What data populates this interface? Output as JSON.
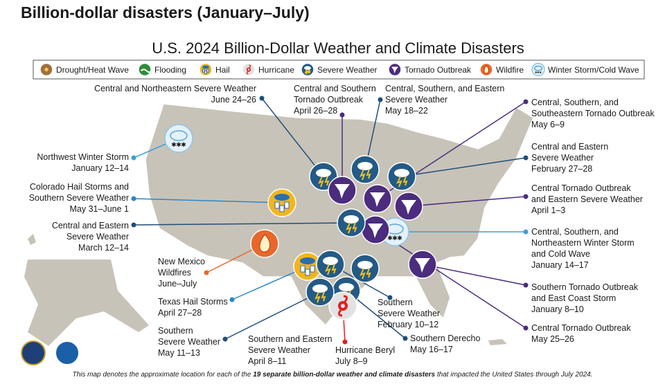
{
  "header": {
    "title": "Billion-dollar disasters (January–July)"
  },
  "map": {
    "title": "U.S. 2024 Billion-Dollar Weather and Climate Disasters"
  },
  "legend": [
    "Drought/Heat Wave",
    "Flooding",
    "Hail",
    "Hurricane",
    "Severe Weather",
    "Tornado Outbreak",
    "Wildfire",
    "Winter Storm/Cold Wave"
  ],
  "events": [
    {
      "lines": [
        "Central and Northeastern Severe Weather",
        "June 24–26"
      ]
    },
    {
      "lines": [
        "Central and Southern",
        "Tornado Outbreak",
        "April 26–28"
      ]
    },
    {
      "lines": [
        "Central, Southern, and Eastern",
        "Severe Weather",
        "May 18–22"
      ]
    },
    {
      "lines": [
        "Central, Southern, and",
        "Southeastern Tornado Outbreak",
        "May 6–9"
      ]
    },
    {
      "lines": [
        "Central and Eastern",
        "Severe Weather",
        "February 27–28"
      ]
    },
    {
      "lines": [
        "Central Tornado Outbreak",
        "and Eastern Severe Weather",
        "April 1–3"
      ]
    },
    {
      "lines": [
        "Central, Southern, and",
        "Northeastern Winter Storm",
        "and Cold Wave",
        "January 14–17"
      ]
    },
    {
      "lines": [
        "Southern Tornado Outbreak",
        "and East Coast Storm",
        "January 8–10"
      ]
    },
    {
      "lines": [
        "Central Tornado Outbreak",
        "May 25–26"
      ]
    },
    {
      "lines": [
        "Southern Derecho",
        "May 16–17"
      ]
    },
    {
      "lines": [
        "Hurricane Beryl",
        "July 8–9"
      ]
    },
    {
      "lines": [
        "Southern and Eastern",
        "Severe Weather",
        "April 8–11"
      ]
    },
    {
      "lines": [
        "Southern",
        "Severe Weather",
        "May 11–13"
      ]
    },
    {
      "lines": [
        "Texas Hail Storms",
        "April 27–28"
      ]
    },
    {
      "lines": [
        "New Mexico",
        "Wildfires",
        "June–July"
      ]
    },
    {
      "lines": [
        "Central and Eastern",
        "Severe Weather",
        "March 12–14"
      ]
    },
    {
      "lines": [
        "Colorado Hail Storms and",
        "Southern Severe Weather",
        "May 31–June 1"
      ]
    },
    {
      "lines": [
        "Northwest Winter Storm",
        "January 12–14"
      ]
    },
    {
      "lines": [
        "Southern",
        "Severe Weather",
        "February 10–12"
      ]
    }
  ],
  "footnote": {
    "pre": "This map denotes the approximate location for each of the ",
    "bold": "19 separate billion-dollar weather and climate disasters",
    "post": " that impacted the United States through July 2024."
  }
}
